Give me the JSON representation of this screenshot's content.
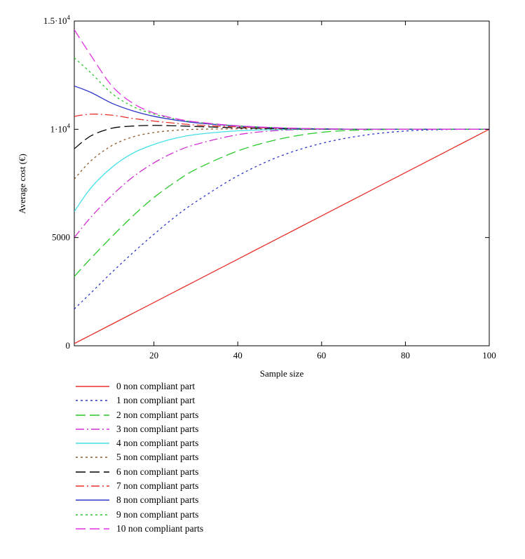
{
  "chart_data": {
    "type": "line",
    "title": "",
    "xlabel": "Sample size",
    "ylabel": "Average cost (€)",
    "xlim": [
      1,
      100
    ],
    "ylim": [
      0,
      15000
    ],
    "grid": false,
    "legend_position": "bottom",
    "x_ticks": [
      {
        "value": 20,
        "label": "20"
      },
      {
        "value": 40,
        "label": "40"
      },
      {
        "value": 60,
        "label": "60"
      },
      {
        "value": 80,
        "label": "80"
      },
      {
        "value": 100,
        "label": "100"
      }
    ],
    "y_ticks": [
      {
        "value": 0,
        "label": "0",
        "mantissa": "0",
        "exponent": ""
      },
      {
        "value": 5000,
        "label": "5000",
        "mantissa": "5000",
        "exponent": ""
      },
      {
        "value": 10000,
        "label": "1·10^4",
        "mantissa": "1·10",
        "exponent": "4"
      },
      {
        "value": 15000,
        "label": "1.5·10^4",
        "mantissa": "1.5·10",
        "exponent": "4"
      }
    ],
    "x": [
      1,
      5,
      10,
      15,
      20,
      25,
      30,
      40,
      50,
      60,
      70,
      80,
      90,
      100
    ],
    "series": [
      {
        "name": "0 non compliant part",
        "color": "#e8312b",
        "dash": "solid",
        "values": [
          100,
          500,
          1000,
          1500,
          2000,
          2500,
          3000,
          4000,
          5000,
          6000,
          7000,
          8000,
          9000,
          10000
        ]
      },
      {
        "name": "1 non compliant part",
        "color": "#2f35c8",
        "dash": "dot",
        "values": [
          1700,
          2450,
          3400,
          4300,
          5150,
          5950,
          6650,
          7850,
          8750,
          9350,
          9720,
          9920,
          9990,
          10000
        ]
      },
      {
        "name": "2 non compliant parts",
        "color": "#28c828",
        "dash": "longdash",
        "values": [
          3200,
          4050,
          5050,
          6000,
          6850,
          7550,
          8150,
          9000,
          9550,
          9860,
          9970,
          10000,
          10000,
          10000
        ]
      },
      {
        "name": "3 non compliant parts",
        "color": "#d030d0",
        "dash": "dashdot",
        "values": [
          5000,
          5950,
          6950,
          7800,
          8450,
          8950,
          9300,
          9750,
          9950,
          10000,
          10000,
          10000,
          10000,
          10000
        ]
      },
      {
        "name": "4 non compliant parts",
        "color": "#40e0e8",
        "dash": "solid",
        "values": [
          6200,
          7300,
          8250,
          8900,
          9300,
          9580,
          9760,
          9930,
          9990,
          10000,
          10000,
          10000,
          10000,
          10000
        ]
      },
      {
        "name": "5 non compliant parts",
        "color": "#8a5a2a",
        "dash": "dot",
        "values": [
          7700,
          8550,
          9250,
          9650,
          9850,
          9950,
          10000,
          10020,
          10010,
          10000,
          10000,
          10000,
          10000,
          10000
        ]
      },
      {
        "name": "6 non compliant parts",
        "color": "#000000",
        "dash": "longdash",
        "values": [
          9100,
          9700,
          10050,
          10150,
          10180,
          10160,
          10130,
          10070,
          10030,
          10010,
          10000,
          10000,
          10000,
          10000
        ]
      },
      {
        "name": "7 non compliant parts",
        "color": "#e8312b",
        "dash": "dashdot",
        "values": [
          10600,
          10700,
          10650,
          10500,
          10380,
          10280,
          10200,
          10110,
          10050,
          10020,
          10000,
          10000,
          10000,
          10000
        ]
      },
      {
        "name": "8 non compliant parts",
        "color": "#2f35c8",
        "dash": "solid",
        "values": [
          12000,
          11700,
          11200,
          10850,
          10600,
          10430,
          10300,
          10150,
          10060,
          10020,
          10000,
          10000,
          10000,
          10000
        ]
      },
      {
        "name": "9 non compliant parts",
        "color": "#28c828",
        "dash": "dot",
        "values": [
          13300,
          12600,
          11650,
          11050,
          10700,
          10480,
          10330,
          10160,
          10070,
          10020,
          10000,
          10000,
          10000,
          10000
        ]
      },
      {
        "name": "10 non compliant parts",
        "color": "#e030e0",
        "dash": "longdash",
        "values": [
          14600,
          13400,
          12000,
          11200,
          10750,
          10500,
          10340,
          10160,
          10070,
          10020,
          10000,
          10000,
          10000,
          10000
        ]
      }
    ]
  }
}
